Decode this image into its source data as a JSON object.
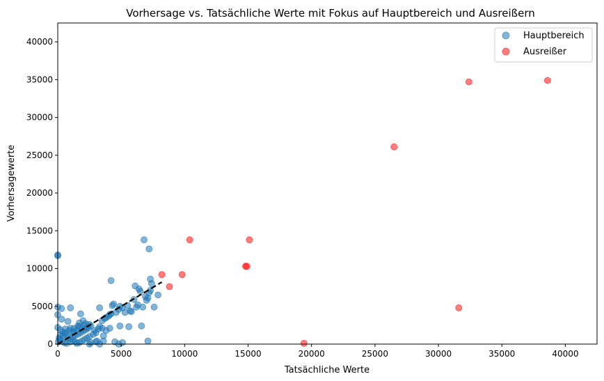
{
  "chart_data": {
    "type": "scatter",
    "title": "Vorhersage vs. Tatsächliche Werte mit Fokus auf Hauptbereich und Ausreißern",
    "xlabel": "Tatsächliche Werte",
    "ylabel": "Vorhersagewerte",
    "xlim": [
      0,
      42500
    ],
    "ylim": [
      0,
      42500
    ],
    "xticks": [
      0,
      5000,
      10000,
      15000,
      20000,
      25000,
      30000,
      35000,
      40000
    ],
    "yticks": [
      0,
      5000,
      10000,
      15000,
      20000,
      25000,
      30000,
      35000,
      40000
    ],
    "grid": false,
    "legend_position": "top-right",
    "series": [
      {
        "name": "Hauptbereich",
        "color": "#1f77b4",
        "opacity": 0.55,
        "points": [
          [
            0,
            11800
          ],
          [
            0,
            11700
          ],
          [
            0,
            4900
          ],
          [
            300,
            4700
          ],
          [
            0,
            3900
          ],
          [
            300,
            3300
          ],
          [
            800,
            3000
          ],
          [
            1000,
            4800
          ],
          [
            0,
            2200
          ],
          [
            200,
            1900
          ],
          [
            400,
            1600
          ],
          [
            600,
            1200
          ],
          [
            800,
            900
          ],
          [
            1000,
            700
          ],
          [
            1200,
            500
          ],
          [
            1400,
            300
          ],
          [
            100,
            800
          ],
          [
            300,
            400
          ],
          [
            500,
            200
          ],
          [
            700,
            100
          ],
          [
            200,
            1200
          ],
          [
            600,
            2000
          ],
          [
            900,
            1800
          ],
          [
            1100,
            1600
          ],
          [
            1300,
            2100
          ],
          [
            1500,
            1900
          ],
          [
            1700,
            2300
          ],
          [
            1900,
            2000
          ],
          [
            2100,
            2500
          ],
          [
            2300,
            2200
          ],
          [
            2500,
            2600
          ],
          [
            2500,
            1000
          ],
          [
            2300,
            800
          ],
          [
            2100,
            600
          ],
          [
            1900,
            400
          ],
          [
            1700,
            200
          ],
          [
            1500,
            100
          ],
          [
            1000,
            300
          ],
          [
            1600,
            1300
          ],
          [
            1800,
            1500
          ],
          [
            2000,
            1700
          ],
          [
            2200,
            1900
          ],
          [
            2400,
            2100
          ],
          [
            1200,
            1000
          ],
          [
            1400,
            1200
          ],
          [
            1800,
            4000
          ],
          [
            1700,
            2800
          ],
          [
            2000,
            3100
          ],
          [
            2600,
            2400
          ],
          [
            2600,
            200
          ],
          [
            2500,
            0
          ],
          [
            3000,
            300
          ],
          [
            3300,
            0
          ],
          [
            3300,
            4800
          ],
          [
            3500,
            2100
          ],
          [
            3300,
            2300
          ],
          [
            3500,
            3100
          ],
          [
            3700,
            3400
          ],
          [
            3800,
            3500
          ],
          [
            4000,
            3700
          ],
          [
            4100,
            3900
          ],
          [
            4200,
            4000
          ],
          [
            4300,
            5100
          ],
          [
            4400,
            5300
          ],
          [
            4200,
            8400
          ],
          [
            4600,
            4200
          ],
          [
            4800,
            4600
          ],
          [
            4900,
            5000
          ],
          [
            4900,
            2400
          ],
          [
            5100,
            4800
          ],
          [
            5300,
            4200
          ],
          [
            5500,
            5100
          ],
          [
            5600,
            2300
          ],
          [
            5700,
            4400
          ],
          [
            5800,
            4300
          ],
          [
            6000,
            5900
          ],
          [
            6100,
            7700
          ],
          [
            6200,
            4900
          ],
          [
            6300,
            5200
          ],
          [
            6400,
            7300
          ],
          [
            6500,
            7000
          ],
          [
            6600,
            2400
          ],
          [
            6700,
            4900
          ],
          [
            6800,
            13800
          ],
          [
            6900,
            6300
          ],
          [
            7000,
            5800
          ],
          [
            7100,
            6100
          ],
          [
            7100,
            400
          ],
          [
            7200,
            12600
          ],
          [
            7200,
            6800
          ],
          [
            7300,
            7100
          ],
          [
            7300,
            8600
          ],
          [
            7400,
            8000
          ],
          [
            7600,
            4900
          ],
          [
            7900,
            6500
          ],
          [
            3800,
            1800
          ],
          [
            4100,
            2100
          ],
          [
            3600,
            1100
          ],
          [
            3100,
            400
          ],
          [
            3600,
            400
          ],
          [
            4500,
            300
          ],
          [
            4800,
            0
          ],
          [
            5100,
            200
          ],
          [
            3000,
            1500
          ],
          [
            2800,
            1300
          ],
          [
            2900,
            1800
          ],
          [
            3200,
            2000
          ],
          [
            1000,
            2100
          ],
          [
            600,
            1500
          ],
          [
            400,
            1100
          ],
          [
            150,
            600
          ],
          [
            50,
            300
          ],
          [
            1600,
            2400
          ],
          [
            1300,
            1600
          ],
          [
            2200,
            2700
          ]
        ]
      },
      {
        "name": "Ausreißer",
        "color": "#ff0000",
        "opacity": 0.5,
        "points": [
          [
            8200,
            9200
          ],
          [
            8800,
            7600
          ],
          [
            9800,
            9200
          ],
          [
            10400,
            13800
          ],
          [
            14800,
            10300
          ],
          [
            14900,
            10300
          ],
          [
            15100,
            13800
          ],
          [
            19400,
            100
          ],
          [
            26500,
            26100
          ],
          [
            31600,
            4800
          ],
          [
            32400,
            34700
          ],
          [
            38600,
            34900
          ]
        ]
      }
    ],
    "reference_line": {
      "x": [
        0,
        8200
      ],
      "y": [
        0,
        8200
      ],
      "style": "dashed",
      "color": "#000000"
    }
  }
}
